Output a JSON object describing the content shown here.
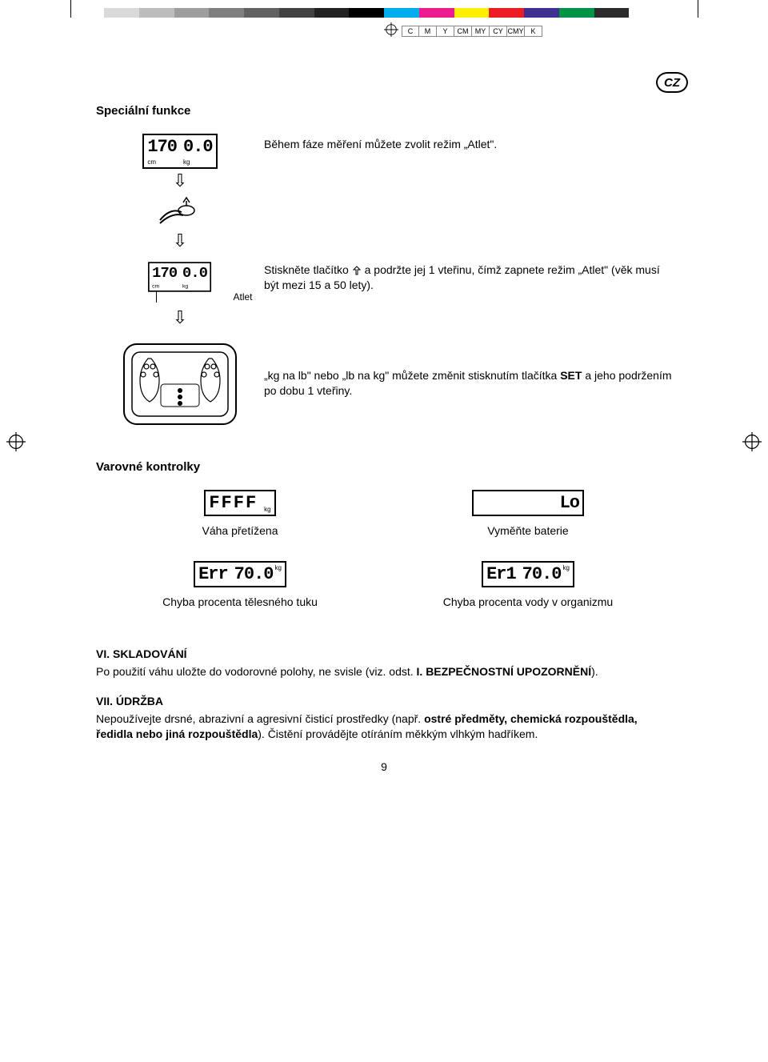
{
  "colorbar": {
    "colors": [
      "#dadada",
      "#bdbdbd",
      "#9e9e9e",
      "#7f7f7f",
      "#616161",
      "#424242",
      "#212121",
      "#000000",
      "#00adee",
      "#ec1c8e",
      "#fff100",
      "#ed1b24",
      "#3e3092",
      "#009345",
      "#2a2b2a",
      "#ffffff"
    ],
    "cmyk": [
      "C",
      "M",
      "Y",
      "CM",
      "MY",
      "CY",
      "CMY",
      "K"
    ]
  },
  "lang_badge": "CZ",
  "h_special": "Speciální funkce",
  "step1_text": "Během fáze měření můžete zvolit režim „Atlet\".",
  "step1_lcd_left": "170",
  "step1_lcd_left_unit": "cm",
  "step1_lcd_right": "0.0",
  "step1_lcd_right_unit": "kg",
  "atlet_label": "Atlet",
  "step2_text_a": "Stiskněte tlačítko ",
  "step2_text_b": " a podržte jej 1 vteřinu, čímž zapnete režim „Atlet\" (věk musí být mezi 15 a 50 lety).",
  "step3_text_a": "„kg na lb\" nebo „lb na kg\" můžete změnit stisknutím tlačítka ",
  "step3_set": "SET",
  "step3_text_b": " a jeho podržením po dobu 1 vteřiny.",
  "h_warning": "Varovné kontrolky",
  "w1_lcd": "FFFF",
  "w1_unit": "kg",
  "w1_caption": "Váha přetížena",
  "w2_lcd": "Lo",
  "w2_caption": "Vyměňte baterie",
  "w3_lcd_a": "Err",
  "w3_lcd_b": "70.0",
  "w3_unit": "kg",
  "w3_caption": "Chyba procenta tělesného tuku",
  "w4_lcd_a": "Er1",
  "w4_lcd_b": "70.0",
  "w4_unit": "kg",
  "w4_caption": "Chyba procenta vody v organizmu",
  "s6_title": "VI. SKLADOVÁNÍ",
  "s6_text_a": "Po použití váhu uložte do vodorovné polohy, ne svisle (viz. odst. ",
  "s6_bold": "I. BEZPEČNOSTNÍ UPOZORNĚNÍ",
  "s6_text_b": ").",
  "s7_title": "VII. ÚDRŽBA",
  "s7_text_a": "Nepoužívejte drsné, abrazivní a agresivní čisticí prostředky (např. ",
  "s7_bold": "ostré předměty, chemická rozpouštědla, ředidla nebo jiná rozpouštědla",
  "s7_text_b": "). Čistění provádějte otíráním měkkým vlhkým hadříkem.",
  "page_number": "9"
}
